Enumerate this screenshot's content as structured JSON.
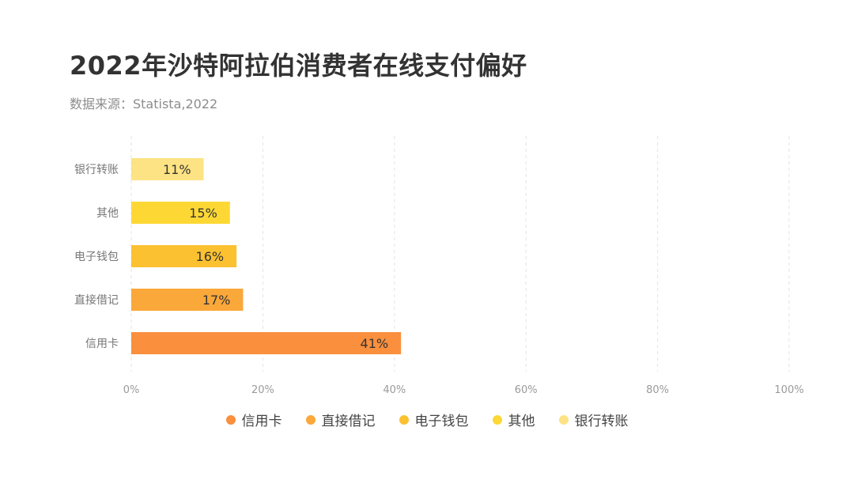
{
  "title": "2022年沙特阿拉伯消费者在线支付偏好",
  "subtitle": "数据来源：Statista,2022",
  "chart_data": {
    "type": "bar",
    "orientation": "horizontal",
    "categories": [
      "银行转账",
      "其他",
      "电子钱包",
      "直接借记",
      "信用卡"
    ],
    "values": [
      11,
      15,
      16,
      17,
      41
    ],
    "value_labels": [
      "11%",
      "15%",
      "16%",
      "17%",
      "41%"
    ],
    "colors": [
      "#fde383",
      "#fdd835",
      "#fbc131",
      "#fba83a",
      "#fa8f3e"
    ],
    "xlim": [
      0,
      100
    ],
    "x_ticks": [
      0,
      20,
      40,
      60,
      80,
      100
    ],
    "x_tick_labels": [
      "0%",
      "20%",
      "40%",
      "60%",
      "80%",
      "100%"
    ],
    "grid": "vertical-dashed",
    "legend_position": "bottom",
    "legend": [
      {
        "label": "信用卡",
        "color": "#fa8f3e"
      },
      {
        "label": "直接借记",
        "color": "#fba83a"
      },
      {
        "label": "电子钱包",
        "color": "#fbc131"
      },
      {
        "label": "其他",
        "color": "#fdd835"
      },
      {
        "label": "银行转账",
        "color": "#fde383"
      }
    ]
  }
}
